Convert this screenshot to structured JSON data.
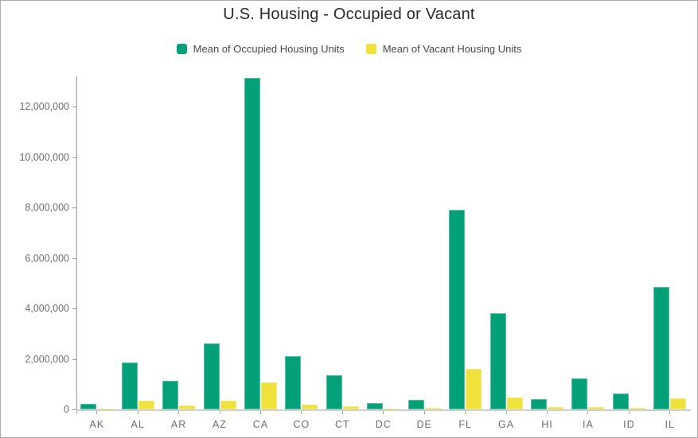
{
  "title": "U.S. Housing - Occupied or Vacant",
  "colors": {
    "occupied": "#04a077",
    "vacant": "#f0e23c",
    "title_text": "#2b2b2b",
    "legend_text": "#4a4a4a",
    "axis_text": "#6e6e6e",
    "axis_line": "#9b9b9b",
    "baseline": "#cfcfcf",
    "background": "#ffffff"
  },
  "chart_data": {
    "type": "bar",
    "title": "U.S. Housing - Occupied or Vacant",
    "categories": [
      "AK",
      "AL",
      "AR",
      "AZ",
      "CA",
      "CO",
      "CT",
      "DC",
      "DE",
      "FL",
      "GA",
      "HI",
      "IA",
      "ID",
      "IL"
    ],
    "series": [
      {
        "name": "Mean of Occupied Housing Units",
        "color": "#04a077",
        "values": [
          220000,
          1860000,
          1120000,
          2600000,
          13140000,
          2110000,
          1350000,
          250000,
          370000,
          7920000,
          3800000,
          420000,
          1230000,
          620000,
          4850000
        ]
      },
      {
        "name": "Mean of Vacant Housing Units",
        "color": "#f0e23c",
        "values": [
          40000,
          350000,
          150000,
          350000,
          1070000,
          190000,
          130000,
          30000,
          70000,
          1600000,
          460000,
          85000,
          100000,
          65000,
          430000
        ]
      }
    ],
    "xlabel": "",
    "ylabel": "",
    "ylim": [
      0,
      13200000
    ],
    "yticks": [
      0,
      2000000,
      4000000,
      6000000,
      8000000,
      10000000,
      12000000
    ],
    "ytick_format": "comma",
    "grid": false,
    "legend_position": "top"
  }
}
